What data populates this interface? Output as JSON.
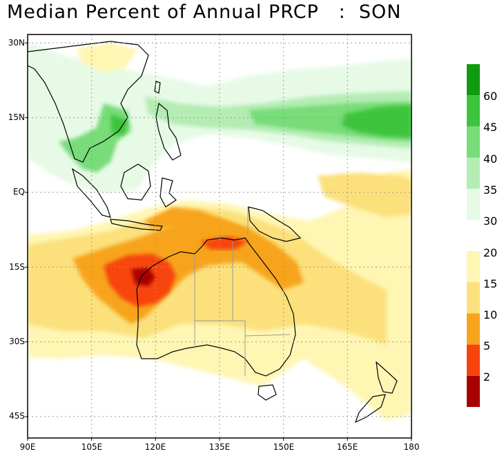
{
  "title": "Median Percent of Annual PRCP   :  SON",
  "map": {
    "lat_ticks": [
      "30N",
      "15N",
      "EQ",
      "15S",
      "30S",
      "45S"
    ],
    "lon_ticks": [
      "90E",
      "105E",
      "120E",
      "135E",
      "150E",
      "165E",
      "180"
    ],
    "extent": {
      "lon": [
        90,
        180
      ],
      "lat": [
        -49,
        32
      ]
    }
  },
  "colorbar": {
    "wet": [
      {
        "label": "60",
        "color": "#109a10"
      },
      {
        "label": "45",
        "color": "#3cc43c"
      },
      {
        "label": "40",
        "color": "#78dc78"
      },
      {
        "label": "35",
        "color": "#b4ecb4"
      },
      {
        "label": "30",
        "color": "#e6fae6"
      }
    ],
    "dry": [
      {
        "label": "20",
        "color": "#fff6b4"
      },
      {
        "label": "15",
        "color": "#fbe07c"
      },
      {
        "label": "10",
        "color": "#f7a41c"
      },
      {
        "label": "5",
        "color": "#f7440c"
      },
      {
        "label": "2",
        "color": "#a80000"
      }
    ]
  }
}
